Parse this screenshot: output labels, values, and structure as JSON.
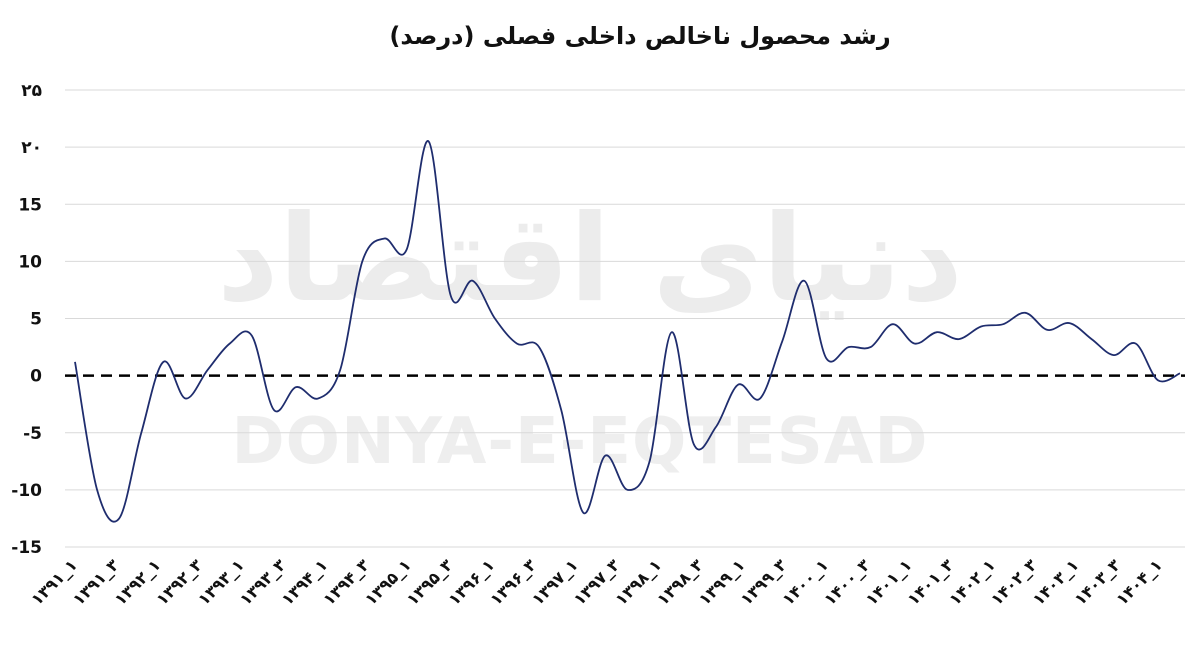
{
  "chart_data": {
    "type": "line",
    "title": "رشد محصول ناخالص داخلی فصلی (درصد)",
    "xlabel": "",
    "ylabel": "",
    "ylim": [
      -15,
      25
    ],
    "yticks": [
      25,
      20,
      15,
      10,
      5,
      0,
      -5,
      -10,
      -15
    ],
    "ytick_labels": [
      "۲۵",
      "۲۰",
      "15",
      "10",
      "5",
      "0",
      "-5",
      "-10",
      "-15"
    ],
    "grid": "horizontal",
    "reference_line": {
      "y": 0,
      "style": "dashed"
    },
    "line_color": "#1f2d6e",
    "watermark": {
      "fa": "دنیای اقتصاد",
      "en": "DONYA-E-EQTESAD"
    },
    "tick_labels": [
      "۱۳۹۱_۱",
      "۱۳۹۱_۳",
      "۱۳۹۲_۱",
      "۱۳۹۲_۳",
      "۱۳۹۳_۱",
      "۱۳۹۳_۳",
      "۱۳۹۴_۱",
      "۱۳۹۴_۳",
      "۱۳۹۵_۱",
      "۱۳۹۵_۳",
      "۱۳۹۶_۱",
      "۱۳۹۶_۳",
      "۱۳۹۷_۱",
      "۱۳۹۷_۳",
      "۱۳۹۸_۱",
      "۱۳۹۸_۳",
      "۱۳۹۹_۱",
      "۱۳۹۹_۳",
      "۱۴۰۰_۱",
      "۱۴۰۰_۳",
      "۱۴۰۱_۱",
      "۱۴۰۱_۳",
      "۱۴۰۲_۱",
      "۱۴۰۲_۳",
      "۱۴۰۳_۱",
      "۱۴۰۳_۳",
      "۱۴۰۴_۱"
    ],
    "series": [
      {
        "values": [
          1.2,
          -10,
          -12.5,
          -5,
          1.2,
          -2,
          0.5,
          2.8,
          3.5,
          -3,
          -1,
          -2,
          0.5,
          10,
          12,
          11,
          20.5,
          7,
          8.3,
          5,
          2.8,
          2.5,
          -3,
          -12,
          -7,
          -10,
          -7.5,
          3.8,
          -6,
          -4.5,
          -0.8,
          -2,
          3,
          8.3,
          1.5,
          2.5,
          2.5,
          4.5,
          2.8,
          3.8,
          3.2,
          4.3,
          4.5,
          5.5,
          4,
          4.6,
          3.2,
          1.8,
          2.8,
          -0.4,
          0.2
        ]
      }
    ]
  }
}
